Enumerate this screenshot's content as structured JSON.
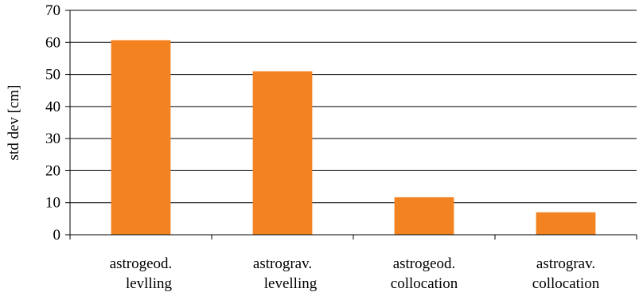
{
  "chart_data": {
    "type": "bar",
    "categories": [
      [
        "astrogeod.",
        "levlling"
      ],
      [
        "astrograv.",
        "levelling"
      ],
      [
        "astrogeod.",
        "collocation"
      ],
      [
        "astrograv.",
        "collocation"
      ]
    ],
    "values": [
      60.7,
      51.0,
      11.7,
      7.0
    ],
    "ylabel": "std dev [cm]",
    "ylim": [
      0,
      70
    ],
    "yticks": [
      0,
      10,
      20,
      30,
      40,
      50,
      60,
      70
    ],
    "grid": true,
    "colors": {
      "bar": "#F38220",
      "grid": "#000000",
      "axis": "#000000"
    }
  }
}
